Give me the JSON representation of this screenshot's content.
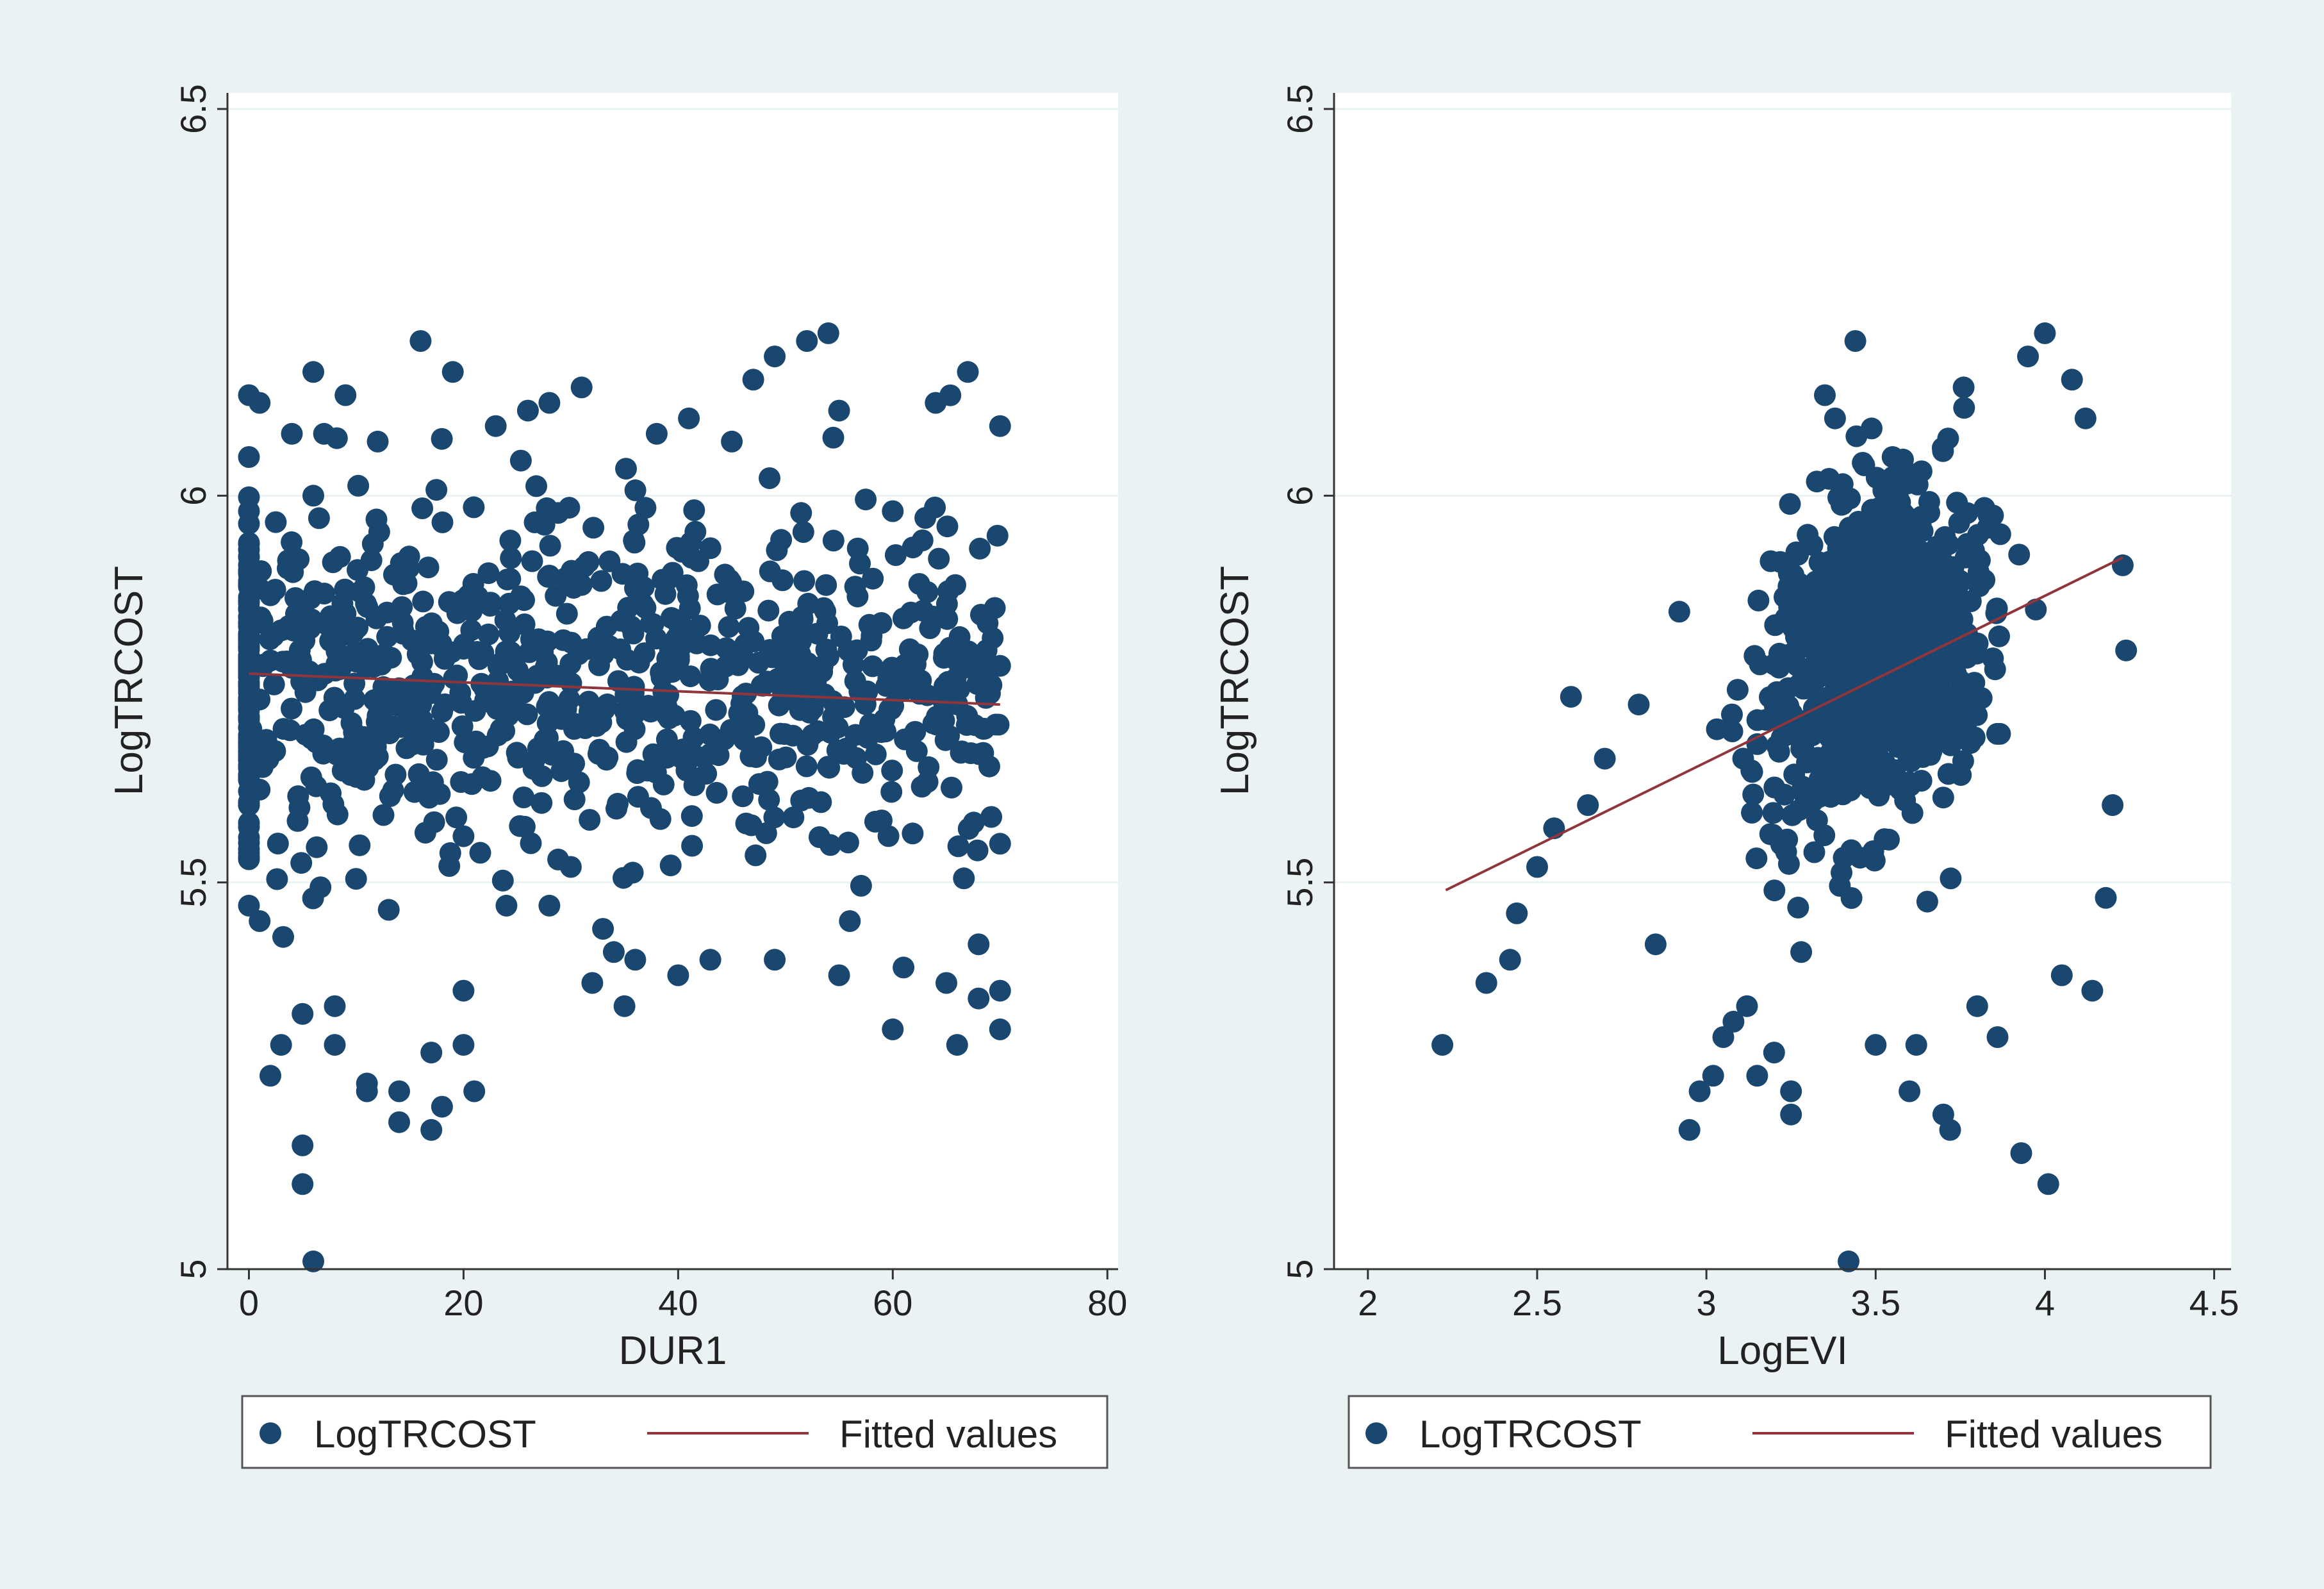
{
  "figure": {
    "background_color": "#eaf2f3",
    "plot_background_color": "#ffffff",
    "marker_color": "#1a476f",
    "fit_line_color": "#90353b",
    "gridline_color": "#eaf2f3"
  },
  "chart_data": [
    {
      "type": "scatter",
      "title": "",
      "xlabel": "DUR1",
      "ylabel": "LogTRCOST",
      "xlim": [
        -2,
        81
      ],
      "ylim": [
        5.0,
        6.5
      ],
      "xticks": [
        0,
        20,
        40,
        60,
        80
      ],
      "xtick_labels": [
        "0",
        "20",
        "40",
        "60",
        "80"
      ],
      "yticks": [
        5.0,
        5.5,
        6.0,
        6.5
      ],
      "ytick_labels": [
        "5",
        "5.5",
        "6",
        "6.5"
      ],
      "grid": true,
      "legend": {
        "placement": "bottom",
        "entries": [
          "LogTRCOST",
          "Fitted values"
        ]
      },
      "fitted_line": {
        "name": "Fitted values",
        "x": [
          0,
          70
        ],
        "y": [
          5.77,
          5.73
        ]
      },
      "series": [
        {
          "name": "LogTRCOST",
          "points_sample": [
            [
              0,
              6.13
            ],
            [
              0,
              6.05
            ],
            [
              0,
              5.98
            ],
            [
              0,
              5.9
            ],
            [
              0,
              5.82
            ],
            [
              0,
              5.75
            ],
            [
              0,
              5.68
            ],
            [
              0,
              5.6
            ],
            [
              0,
              5.53
            ],
            [
              0,
              5.47
            ],
            [
              1,
              6.12
            ],
            [
              1,
              5.88
            ],
            [
              1,
              5.62
            ],
            [
              1,
              5.45
            ],
            [
              2,
              5.25
            ],
            [
              3,
              5.29
            ],
            [
              4,
              6.08
            ],
            [
              5,
              5.16
            ],
            [
              5,
              5.11
            ],
            [
              5,
              5.33
            ],
            [
              6,
              5.01
            ],
            [
              6,
              6.16
            ],
            [
              6,
              6.0
            ],
            [
              7,
              6.08
            ],
            [
              8,
              5.34
            ],
            [
              8,
              5.29
            ],
            [
              9,
              6.13
            ],
            [
              11,
              5.24
            ],
            [
              11,
              5.23
            ],
            [
              12,
              6.07
            ],
            [
              14,
              5.19
            ],
            [
              14,
              5.23
            ],
            [
              16,
              6.2
            ],
            [
              17,
              5.18
            ],
            [
              17,
              5.28
            ],
            [
              18,
              5.21
            ],
            [
              19,
              6.16
            ],
            [
              20,
              5.29
            ],
            [
              20,
              5.36
            ],
            [
              21,
              5.23
            ],
            [
              23,
              6.09
            ],
            [
              24,
              5.47
            ],
            [
              26,
              6.11
            ],
            [
              28,
              5.47
            ],
            [
              28,
              6.12
            ],
            [
              30,
              5.52
            ],
            [
              31,
              6.14
            ],
            [
              32,
              5.37
            ],
            [
              33,
              5.44
            ],
            [
              34,
              5.41
            ],
            [
              35,
              5.34
            ],
            [
              36,
              5.4
            ],
            [
              38,
              6.08
            ],
            [
              40,
              5.38
            ],
            [
              41,
              6.1
            ],
            [
              43,
              5.4
            ],
            [
              45,
              6.07
            ],
            [
              47,
              6.15
            ],
            [
              49,
              6.18
            ],
            [
              49,
              5.4
            ],
            [
              52,
              6.2
            ],
            [
              54,
              6.21
            ],
            [
              55,
              6.11
            ],
            [
              55,
              5.38
            ],
            [
              56,
              5.45
            ],
            [
              60,
              5.31
            ],
            [
              60,
              5.98
            ],
            [
              61,
              5.39
            ],
            [
              64,
              6.12
            ],
            [
              65,
              5.37
            ],
            [
              66,
              5.29
            ],
            [
              67,
              6.16
            ],
            [
              68,
              5.35
            ],
            [
              68,
              5.42
            ],
            [
              70,
              6.09
            ],
            [
              70,
              5.78
            ],
            [
              70,
              5.55
            ],
            [
              70,
              5.36
            ],
            [
              70,
              5.31
            ],
            [
              69,
              5.65
            ]
          ],
          "generated_cloud": {
            "count": 900,
            "x_range": [
              0,
              70
            ],
            "y_center": 5.76,
            "y_spread": 0.16,
            "note": "dense cloud around the fitted line"
          }
        }
      ]
    },
    {
      "type": "scatter",
      "title": "",
      "xlabel": "LogEVI",
      "ylabel": "LogTRCOST",
      "xlim": [
        1.9,
        4.55
      ],
      "ylim": [
        5.0,
        6.5
      ],
      "xticks": [
        2,
        2.5,
        3,
        3.5,
        4,
        4.5
      ],
      "xtick_labels": [
        "2",
        "2.5",
        "3",
        "3.5",
        "4",
        "4.5"
      ],
      "yticks": [
        5.0,
        5.5,
        6.0,
        6.5
      ],
      "ytick_labels": [
        "5",
        "5.5",
        "6",
        "6.5"
      ],
      "grid": true,
      "legend": {
        "placement": "bottom",
        "entries": [
          "LogTRCOST",
          "Fitted values"
        ]
      },
      "fitted_line": {
        "name": "Fitted values",
        "x": [
          2.23,
          4.23
        ],
        "y": [
          5.49,
          5.92
        ]
      },
      "series": [
        {
          "name": "LogTRCOST",
          "points_sample": [
            [
              2.22,
              5.29
            ],
            [
              2.35,
              5.37
            ],
            [
              2.42,
              5.4
            ],
            [
              2.44,
              5.46
            ],
            [
              2.5,
              5.52
            ],
            [
              2.55,
              5.57
            ],
            [
              2.6,
              5.74
            ],
            [
              2.65,
              5.6
            ],
            [
              2.7,
              5.66
            ],
            [
              2.8,
              5.73
            ],
            [
              2.85,
              5.42
            ],
            [
              2.92,
              5.85
            ],
            [
              2.95,
              5.18
            ],
            [
              2.98,
              5.23
            ],
            [
              3.02,
              5.25
            ],
            [
              3.05,
              5.3
            ],
            [
              3.08,
              5.32
            ],
            [
              3.12,
              5.34
            ],
            [
              3.15,
              5.25
            ],
            [
              3.2,
              5.28
            ],
            [
              3.25,
              5.2
            ],
            [
              3.25,
              5.23
            ],
            [
              3.28,
              5.41
            ],
            [
              3.35,
              6.13
            ],
            [
              3.38,
              6.1
            ],
            [
              3.42,
              5.01
            ],
            [
              3.44,
              6.2
            ],
            [
              3.5,
              5.29
            ],
            [
              3.6,
              5.23
            ],
            [
              3.62,
              5.29
            ],
            [
              3.7,
              5.2
            ],
            [
              3.72,
              5.18
            ],
            [
              3.76,
              6.14
            ],
            [
              3.8,
              5.34
            ],
            [
              3.86,
              5.3
            ],
            [
              3.93,
              5.15
            ],
            [
              3.95,
              6.18
            ],
            [
              4.0,
              6.21
            ],
            [
              4.01,
              5.11
            ],
            [
              4.05,
              5.38
            ],
            [
              4.08,
              6.15
            ],
            [
              4.12,
              6.1
            ],
            [
              4.14,
              5.36
            ],
            [
              4.18,
              5.48
            ],
            [
              4.2,
              5.6
            ],
            [
              4.23,
              5.91
            ],
            [
              4.24,
              5.8
            ],
            [
              3.55,
              6.05
            ],
            [
              3.5,
              5.95
            ],
            [
              3.45,
              5.85
            ]
          ],
          "generated_cloud": {
            "count": 900,
            "x_range": [
              2.9,
              4.2
            ],
            "y_center": 5.8,
            "y_spread": 0.15,
            "note": "dense cloud concentrated at LogEVI 3.1-3.9"
          }
        }
      ]
    }
  ]
}
